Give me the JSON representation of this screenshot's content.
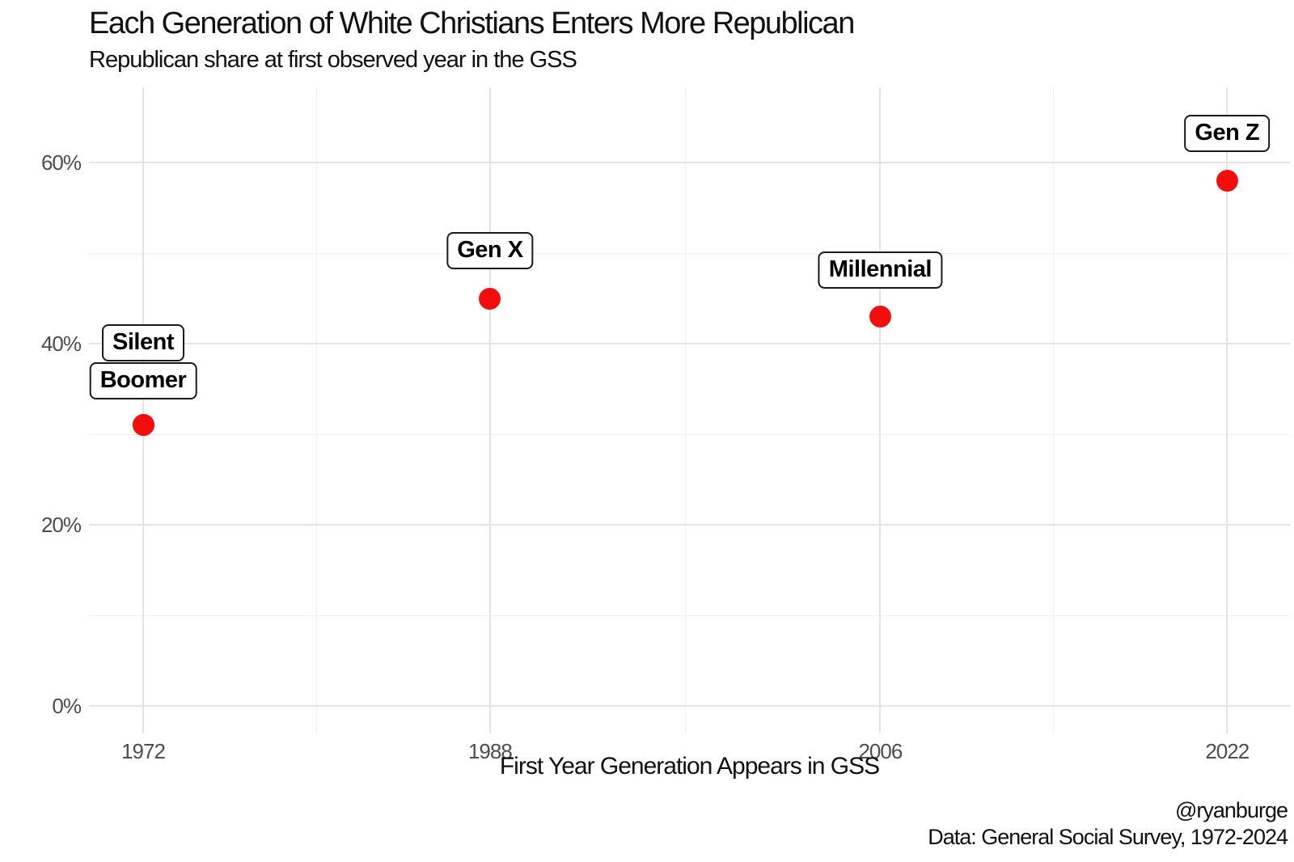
{
  "chart_data": {
    "type": "scatter",
    "title": "Each Generation of White Christians Enters More Republican",
    "subtitle": "Republican share at first observed year in the GSS",
    "xlabel": "First Year Generation Appears in GSS",
    "caption_handle": "@ryanburge",
    "caption_source": "Data: General Social Survey, 1972-2024",
    "point_color": "#f30d0d",
    "grid": "on",
    "legend": "none",
    "xlim": [
      1969.5,
      2024.9
    ],
    "ylim": [
      -3,
      68.3
    ],
    "x_ticks": [
      {
        "value": 1972,
        "label": "1972"
      },
      {
        "value": 1988,
        "label": "1988"
      },
      {
        "value": 2006,
        "label": "2006"
      },
      {
        "value": 2022,
        "label": "2022"
      }
    ],
    "x_minor": [
      1980,
      1997,
      2014
    ],
    "y_ticks": [
      {
        "value": 0,
        "label": "0%"
      },
      {
        "value": 20,
        "label": "20%"
      },
      {
        "value": 40,
        "label": "40%"
      },
      {
        "value": 60,
        "label": "60%"
      }
    ],
    "y_minor": [
      10,
      30,
      50
    ],
    "points": [
      {
        "generation": "Silent",
        "first_year": 1972,
        "republican_share": 31,
        "label_dy": -102
      },
      {
        "generation": "Boomer",
        "first_year": 1972,
        "republican_share": 31,
        "label_dy": -55
      },
      {
        "generation": "Gen X",
        "first_year": 1988,
        "republican_share": 45,
        "label_dy": -59
      },
      {
        "generation": "Millennial",
        "first_year": 2006,
        "republican_share": 43,
        "label_dy": -58
      },
      {
        "generation": "Gen Z",
        "first_year": 2022,
        "republican_share": 58,
        "label_dy": -58
      }
    ]
  }
}
